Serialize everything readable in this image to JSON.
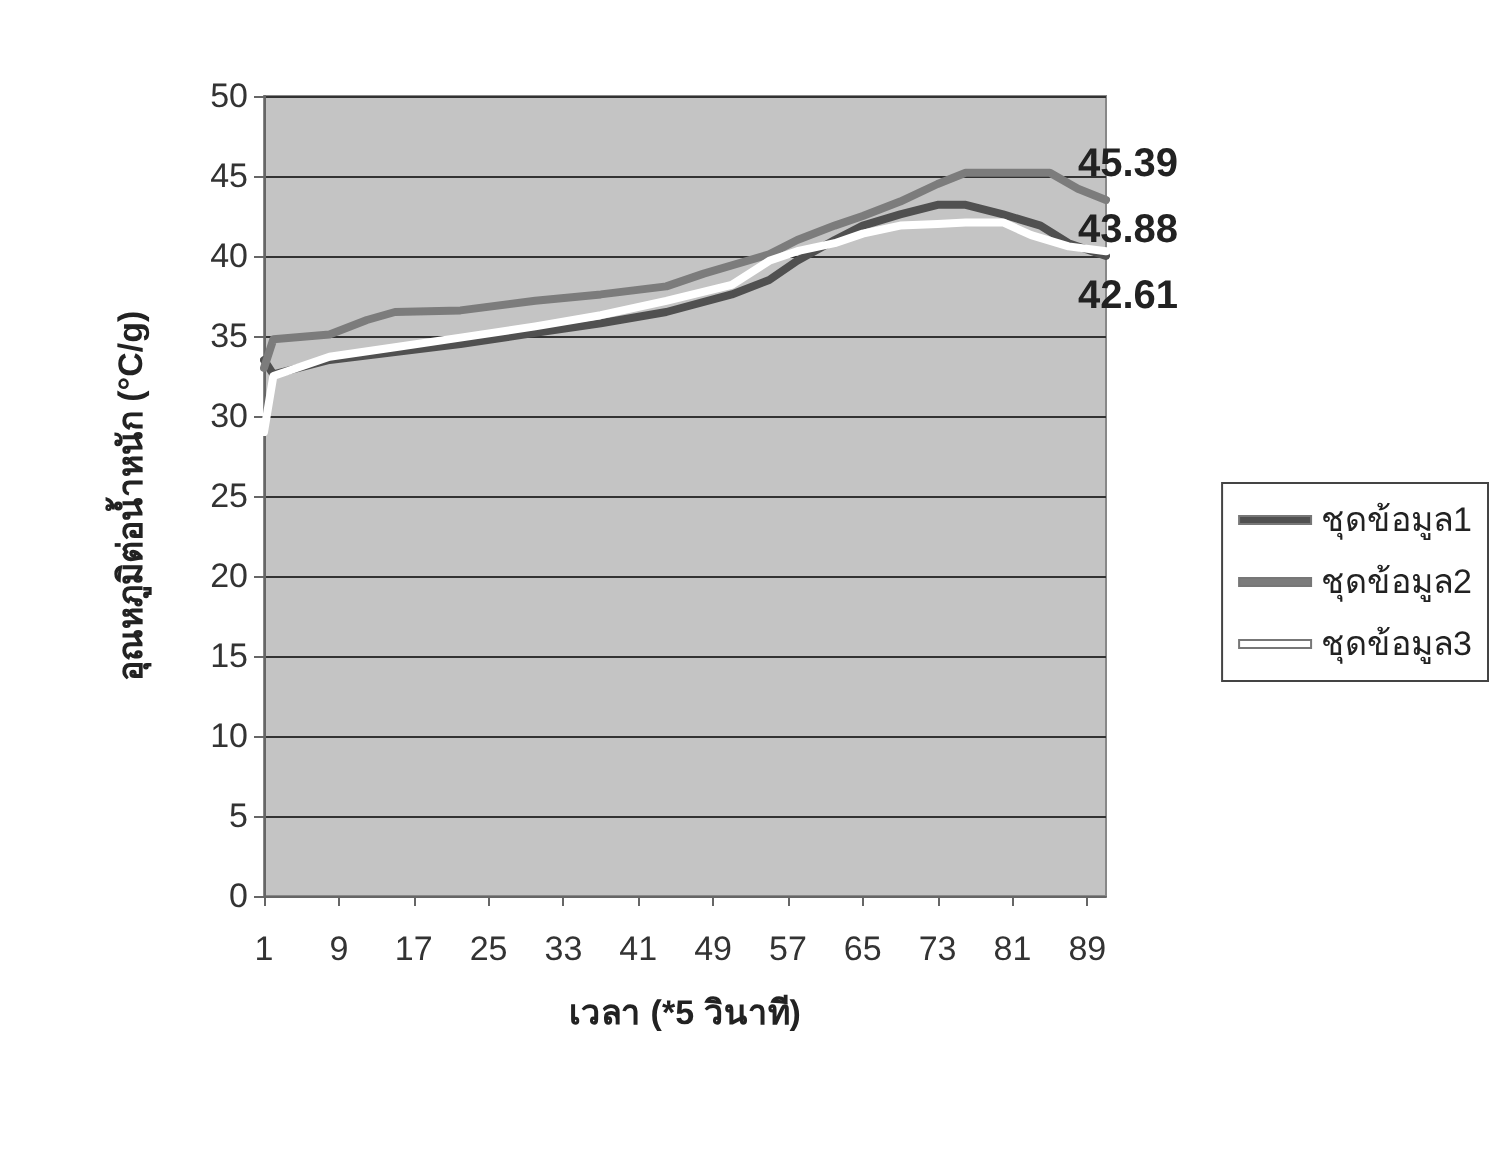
{
  "chart_data": {
    "type": "line",
    "xlabel": "เวลา (*5 วินาที)",
    "ylabel": "อุณหภูมิต่อน้ำหนัก (°C/g)",
    "xlim": [
      1,
      91
    ],
    "xticks": [
      1,
      9,
      17,
      25,
      33,
      41,
      49,
      57,
      65,
      73,
      81,
      89
    ],
    "ylim": [
      0,
      50
    ],
    "yticks": [
      0,
      5,
      10,
      15,
      20,
      25,
      30,
      35,
      40,
      45,
      50
    ],
    "grid": "y",
    "legend": "right",
    "marker": "none",
    "line_style": "solid",
    "annotations": [
      "45.39",
      "43.88",
      "42.61"
    ],
    "series": [
      {
        "name": "ชุดข้อมูล1",
        "color": "#505050",
        "x": [
          1,
          2,
          8,
          15,
          22,
          30,
          37,
          44,
          51,
          55,
          58,
          62,
          65,
          69,
          73,
          76,
          80,
          84,
          87,
          91
        ],
        "values": [
          33.5,
          32.6,
          33.5,
          34,
          34.5,
          35.2,
          35.8,
          36.5,
          37.6,
          38.5,
          39.7,
          41,
          41.9,
          42.6,
          43.2,
          43.2,
          42.6,
          41.9,
          40.8,
          40
        ]
      },
      {
        "name": "ชุดข้อมูล2",
        "color": "#7c7c7c",
        "x": [
          1,
          2,
          8,
          12,
          15,
          22,
          30,
          37,
          44,
          48,
          55,
          58,
          62,
          65,
          69,
          73,
          76,
          80,
          85,
          88,
          91
        ],
        "values": [
          33,
          34.8,
          35.1,
          36,
          36.5,
          36.6,
          37.2,
          37.6,
          38.1,
          38.9,
          40.1,
          41,
          41.9,
          42.5,
          43.4,
          44.5,
          45.2,
          45.2,
          45.2,
          44.2,
          43.5
        ]
      },
      {
        "name": "ชุดข้อมูล3",
        "color": "#ffffff",
        "x": [
          1,
          2,
          8,
          15,
          22,
          30,
          37,
          44,
          51,
          55,
          58,
          62,
          65,
          69,
          73,
          76,
          80,
          83,
          87,
          91
        ],
        "values": [
          29,
          32.5,
          33.7,
          34.3,
          34.9,
          35.6,
          36.3,
          37.2,
          38.2,
          39.7,
          40.3,
          40.8,
          41.4,
          41.9,
          42,
          42.1,
          42.1,
          41.3,
          40.6,
          40.3
        ]
      }
    ]
  }
}
